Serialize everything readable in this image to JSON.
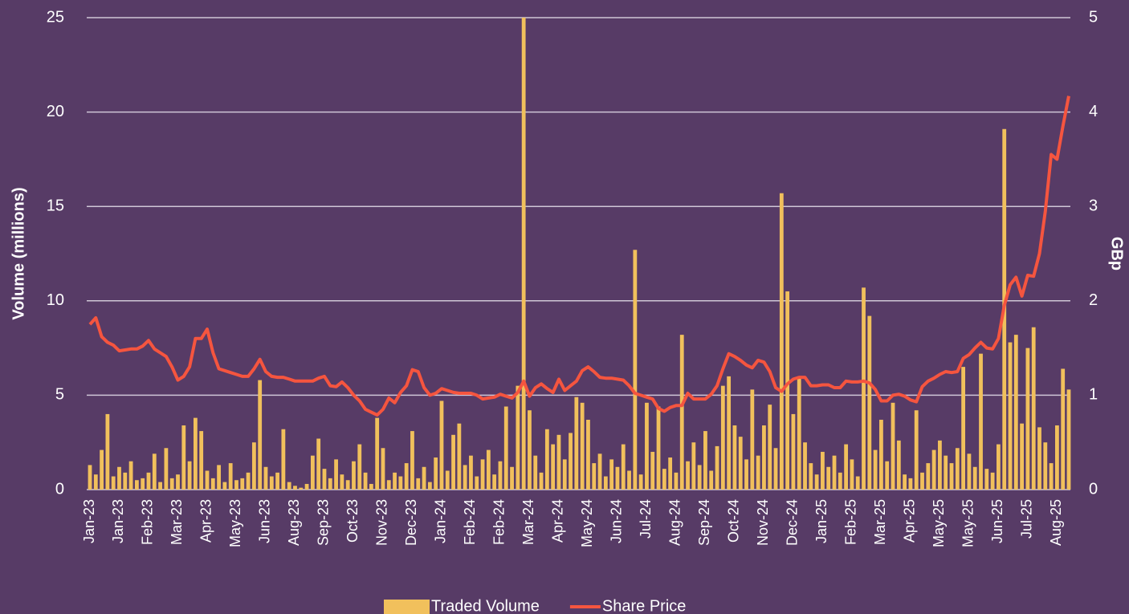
{
  "chart_data": {
    "type": "bar",
    "y_label": "Volume (millions)",
    "y2_label": "GBp",
    "ylim": [
      0,
      25
    ],
    "yticks": [
      0,
      5,
      10,
      15,
      20,
      25
    ],
    "y2lim": [
      0,
      5
    ],
    "y2ticks": [
      0,
      1,
      2,
      3,
      4,
      5
    ],
    "grid": true,
    "legend": "bottom",
    "categories": [
      "Jan-23",
      null,
      null,
      null,
      null,
      "Jan-23",
      null,
      null,
      null,
      null,
      "Feb-23",
      null,
      null,
      null,
      null,
      "Mar-23",
      null,
      null,
      null,
      null,
      "Apr-23",
      null,
      null,
      null,
      null,
      "May-23",
      null,
      null,
      null,
      null,
      "Jun-23",
      null,
      null,
      null,
      null,
      "Aug-23",
      null,
      null,
      null,
      null,
      "Sep-23",
      null,
      null,
      null,
      null,
      "Oct-23",
      null,
      null,
      null,
      null,
      "Nov-23",
      null,
      null,
      null,
      null,
      "Dec-23",
      null,
      null,
      null,
      null,
      "Jan-24",
      null,
      null,
      null,
      null,
      "Feb-24",
      null,
      null,
      null,
      null,
      "Feb-24",
      null,
      null,
      null,
      null,
      "Mar-24",
      null,
      null,
      null,
      null,
      "Apr-24",
      null,
      null,
      null,
      null,
      "May-24",
      null,
      null,
      null,
      null,
      "Jun-24",
      null,
      null,
      null,
      null,
      "Jul-24",
      null,
      null,
      null,
      null,
      "Aug-24",
      null,
      null,
      null,
      null,
      "Sep-24",
      null,
      null,
      null,
      null,
      "Oct-24",
      null,
      null,
      null,
      null,
      "Nov-24",
      null,
      null,
      null,
      null,
      "Dec-24",
      null,
      null,
      null,
      null,
      "Jan-25",
      null,
      null,
      null,
      null,
      "Feb-25",
      null,
      null,
      null,
      null,
      "Mar-25",
      null,
      null,
      null,
      null,
      "Apr-25",
      null,
      null,
      null,
      null,
      "May-25",
      null,
      null,
      null,
      null,
      "May-25",
      null,
      null,
      null,
      null,
      "Jun-25",
      null,
      null,
      null,
      null,
      "Jul-25",
      null,
      null,
      null,
      null,
      "Aug-25",
      null,
      null
    ],
    "series": [
      {
        "name": "Traded Volume",
        "type": "bar",
        "color": "#f1c05c",
        "values": [
          1.3,
          0.8,
          2.1,
          4.0,
          0.7,
          1.2,
          0.9,
          1.5,
          0.5,
          0.6,
          0.9,
          1.9,
          0.4,
          2.2,
          0.6,
          0.8,
          3.4,
          1.5,
          3.8,
          3.1,
          1.0,
          0.6,
          1.3,
          0.4,
          1.4,
          0.5,
          0.6,
          0.9,
          2.5,
          5.8,
          1.2,
          0.7,
          0.9,
          3.2,
          0.4,
          0.2,
          0.1,
          0.3,
          1.8,
          2.7,
          1.1,
          0.6,
          1.6,
          0.8,
          0.5,
          1.5,
          2.4,
          0.9,
          0.3,
          3.8,
          2.2,
          0.5,
          0.9,
          0.7,
          1.4,
          3.1,
          0.6,
          1.2,
          0.4,
          1.7,
          4.7,
          1.0,
          2.9,
          3.5,
          1.3,
          1.8,
          0.7,
          1.6,
          2.1,
          0.8,
          1.5,
          4.4,
          1.2,
          5.5,
          25,
          4.2,
          1.8,
          0.9,
          3.2,
          2.4,
          2.9,
          1.6,
          3.0,
          4.9,
          4.6,
          3.7,
          1.4,
          1.9,
          0.7,
          1.6,
          1.2,
          2.4,
          1.0,
          12.7,
          0.8,
          4.6,
          2.0,
          4.4,
          1.1,
          1.7,
          0.9,
          8.2,
          1.5,
          2.5,
          1.3,
          3.1,
          1.0,
          2.3,
          5.5,
          6.0,
          3.4,
          2.8,
          1.6,
          5.3,
          1.8,
          3.4,
          4.5,
          2.2,
          15.7,
          10.5,
          4.0,
          6.0,
          2.5,
          1.4,
          0.8,
          2.0,
          1.2,
          1.8,
          0.9,
          2.4,
          1.6,
          0.7,
          10.7,
          9.2,
          2.1,
          3.7,
          1.5,
          4.6,
          2.6,
          0.8,
          0.6,
          4.2,
          0.9,
          1.4,
          2.1,
          2.6,
          1.8,
          1.4,
          2.2,
          6.5,
          1.9,
          1.2,
          7.2,
          1.1,
          0.9,
          2.4,
          19.1,
          7.8,
          8.2,
          3.5,
          7.5,
          8.6,
          3.3,
          2.5,
          1.4,
          3.4,
          6.4,
          5.3
        ]
      },
      {
        "name": "Share Price",
        "type": "line",
        "axis": "y2",
        "color": "#f5553f",
        "values": [
          1.75,
          1.82,
          1.62,
          1.56,
          1.53,
          1.47,
          1.48,
          1.49,
          1.49,
          1.52,
          1.58,
          1.49,
          1.45,
          1.41,
          1.3,
          1.16,
          1.2,
          1.3,
          1.6,
          1.6,
          1.7,
          1.45,
          1.28,
          1.26,
          1.24,
          1.22,
          1.2,
          1.2,
          1.28,
          1.38,
          1.25,
          1.2,
          1.19,
          1.19,
          1.17,
          1.15,
          1.15,
          1.15,
          1.15,
          1.18,
          1.2,
          1.1,
          1.09,
          1.14,
          1.08,
          1.0,
          0.94,
          0.85,
          0.82,
          0.79,
          0.85,
          0.97,
          0.92,
          1.03,
          1.1,
          1.27,
          1.25,
          1.08,
          1.0,
          1.02,
          1.07,
          1.05,
          1.03,
          1.02,
          1.02,
          1.02,
          1.0,
          0.96,
          0.97,
          0.98,
          1.01,
          0.99,
          0.97,
          1.03,
          1.15,
          0.99,
          1.08,
          1.12,
          1.07,
          1.03,
          1.17,
          1.05,
          1.1,
          1.15,
          1.26,
          1.3,
          1.25,
          1.19,
          1.18,
          1.18,
          1.17,
          1.16,
          1.1,
          1.02,
          1.0,
          0.98,
          0.96,
          0.86,
          0.83,
          0.87,
          0.89,
          0.89,
          1.02,
          0.96,
          0.96,
          0.96,
          1.01,
          1.1,
          1.28,
          1.44,
          1.41,
          1.37,
          1.32,
          1.29,
          1.37,
          1.35,
          1.25,
          1.08,
          1.04,
          1.12,
          1.17,
          1.19,
          1.19,
          1.1,
          1.1,
          1.11,
          1.11,
          1.08,
          1.08,
          1.15,
          1.14,
          1.14,
          1.15,
          1.13,
          1.06,
          0.94,
          0.94,
          1.0,
          1.01,
          0.99,
          0.95,
          0.93,
          1.09,
          1.15,
          1.18,
          1.22,
          1.25,
          1.24,
          1.25,
          1.39,
          1.43,
          1.5,
          1.56,
          1.5,
          1.49,
          1.6,
          1.95,
          2.17,
          2.25,
          2.05,
          2.27,
          2.26,
          2.5,
          2.95,
          3.55,
          3.5,
          3.85,
          4.17
        ]
      }
    ]
  }
}
